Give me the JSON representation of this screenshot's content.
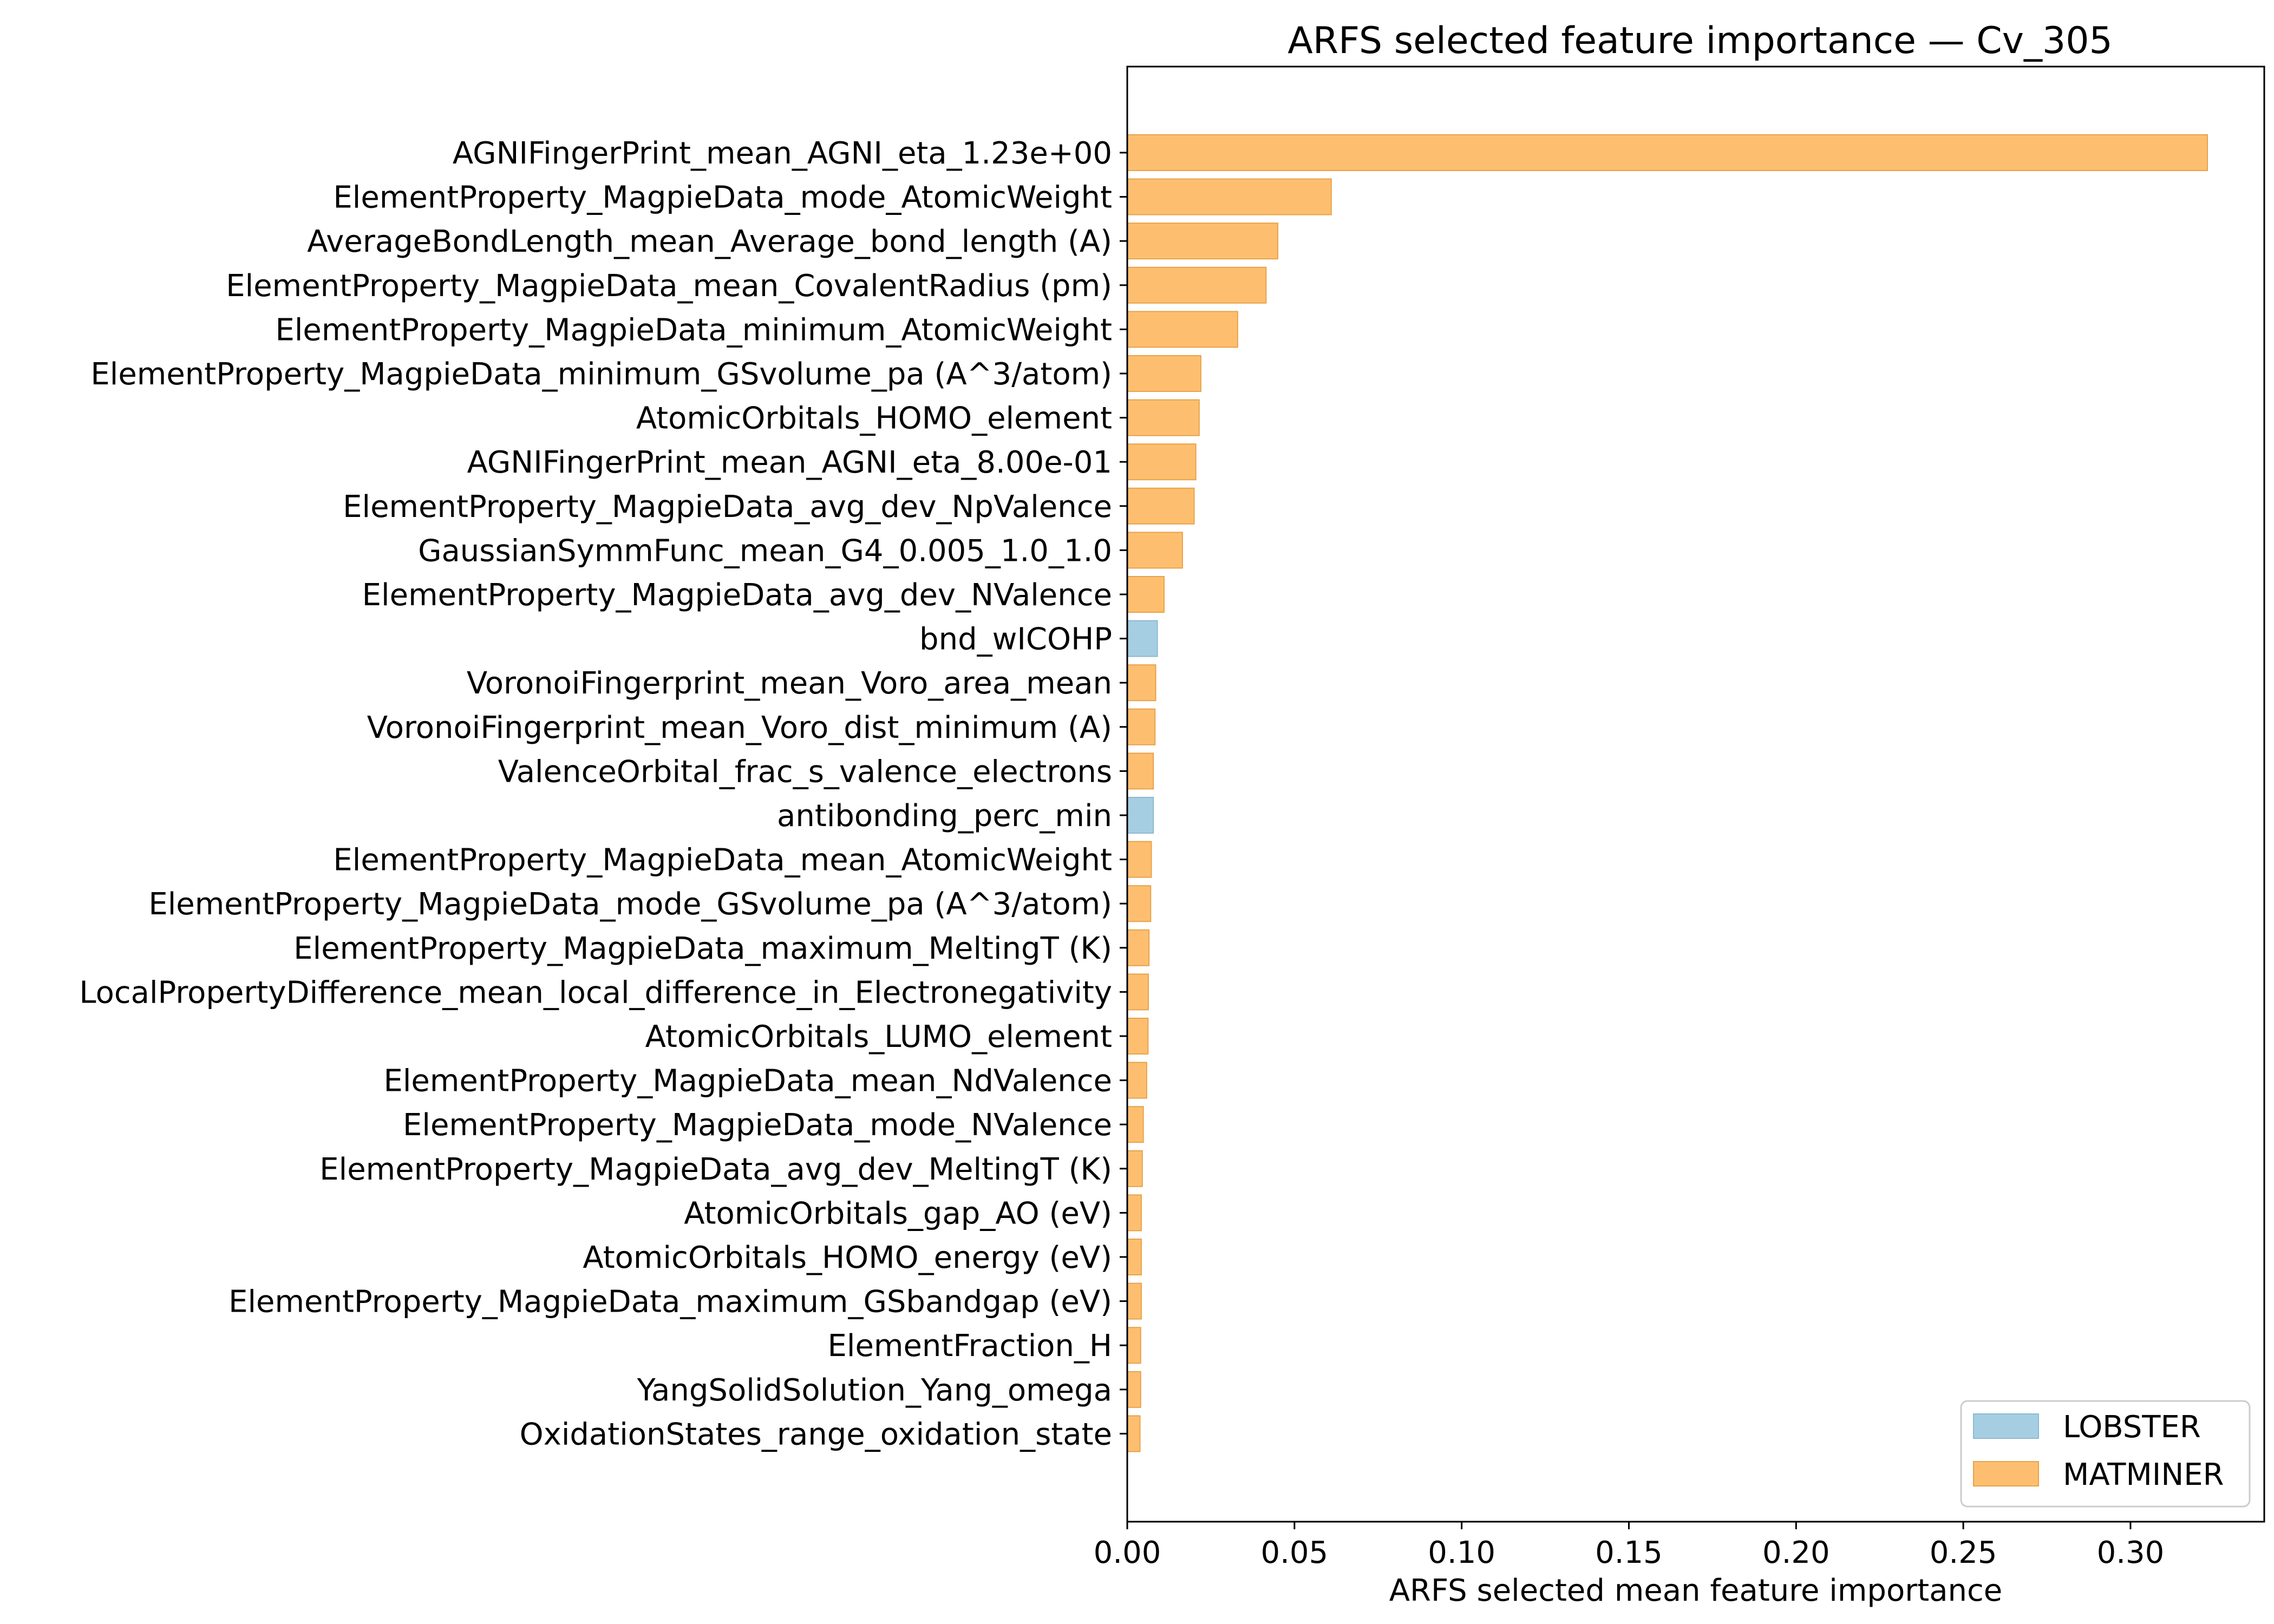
{
  "chart_data": {
    "type": "bar",
    "orientation": "horizontal",
    "title": "ARFS selected feature importance — Cv_305",
    "xlabel": "ARFS selected mean feature importance",
    "ylabel": "",
    "xlim": [
      0.0,
      0.34
    ],
    "xticks": [
      0.0,
      0.05,
      0.1,
      0.15,
      0.2,
      0.25,
      0.3
    ],
    "xtick_labels": [
      "0.00",
      "0.05",
      "0.10",
      "0.15",
      "0.20",
      "0.25",
      "0.30"
    ],
    "grid": false,
    "legend": {
      "position": "bottom-right",
      "entries": [
        {
          "name": "LOBSTER",
          "color": "#a6cee3"
        },
        {
          "name": "MATMINER",
          "color": "#fdbf6f"
        }
      ]
    },
    "colors": {
      "LOBSTER": "#a6cee3",
      "MATMINER": "#fdbf6f",
      "LOBSTER_edge": "#8fb8d0",
      "MATMINER_edge": "#e8a24a"
    },
    "categories": [
      "AGNIFingerPrint_mean_AGNI_eta_1.23e+00",
      "ElementProperty_MagpieData_mode_AtomicWeight",
      "AverageBondLength_mean_Average_bond_length (A)",
      "ElementProperty_MagpieData_mean_CovalentRadius (pm)",
      "ElementProperty_MagpieData_minimum_AtomicWeight",
      "ElementProperty_MagpieData_minimum_GSvolume_pa (A^3/atom)",
      "AtomicOrbitals_HOMO_element",
      "AGNIFingerPrint_mean_AGNI_eta_8.00e-01",
      "ElementProperty_MagpieData_avg_dev_NpValence",
      "GaussianSymmFunc_mean_G4_0.005_1.0_1.0",
      "ElementProperty_MagpieData_avg_dev_NValence",
      "bnd_wICOHP",
      "VoronoiFingerprint_mean_Voro_area_mean",
      "VoronoiFingerprint_mean_Voro_dist_minimum (A)",
      "ValenceOrbital_frac_s_valence_electrons",
      "antibonding_perc_min",
      "ElementProperty_MagpieData_mean_AtomicWeight",
      "ElementProperty_MagpieData_mode_GSvolume_pa (A^3/atom)",
      "ElementProperty_MagpieData_maximum_MeltingT (K)",
      "LocalPropertyDifference_mean_local_difference_in_Electronegativity",
      "AtomicOrbitals_LUMO_element",
      "ElementProperty_MagpieData_mean_NdValence",
      "ElementProperty_MagpieData_mode_NValence",
      "ElementProperty_MagpieData_avg_dev_MeltingT (K)",
      "AtomicOrbitals_gap_AO (eV)",
      "AtomicOrbitals_HOMO_energy (eV)",
      "ElementProperty_MagpieData_maximum_GSbandgap (eV)",
      "ElementFraction_H",
      "YangSolidSolution_Yang_omega",
      "OxidationStates_range_oxidation_state"
    ],
    "values": [
      0.323,
      0.061,
      0.045,
      0.0415,
      0.033,
      0.022,
      0.0215,
      0.0205,
      0.02,
      0.0165,
      0.011,
      0.009,
      0.0085,
      0.0083,
      0.0078,
      0.0078,
      0.0072,
      0.007,
      0.0065,
      0.0063,
      0.0062,
      0.0058,
      0.0048,
      0.0045,
      0.0042,
      0.0042,
      0.0042,
      0.004,
      0.004,
      0.0038
    ],
    "groups": [
      "MATMINER",
      "MATMINER",
      "MATMINER",
      "MATMINER",
      "MATMINER",
      "MATMINER",
      "MATMINER",
      "MATMINER",
      "MATMINER",
      "MATMINER",
      "MATMINER",
      "LOBSTER",
      "MATMINER",
      "MATMINER",
      "MATMINER",
      "LOBSTER",
      "MATMINER",
      "MATMINER",
      "MATMINER",
      "MATMINER",
      "MATMINER",
      "MATMINER",
      "MATMINER",
      "MATMINER",
      "MATMINER",
      "MATMINER",
      "MATMINER",
      "MATMINER",
      "MATMINER",
      "MATMINER"
    ]
  }
}
